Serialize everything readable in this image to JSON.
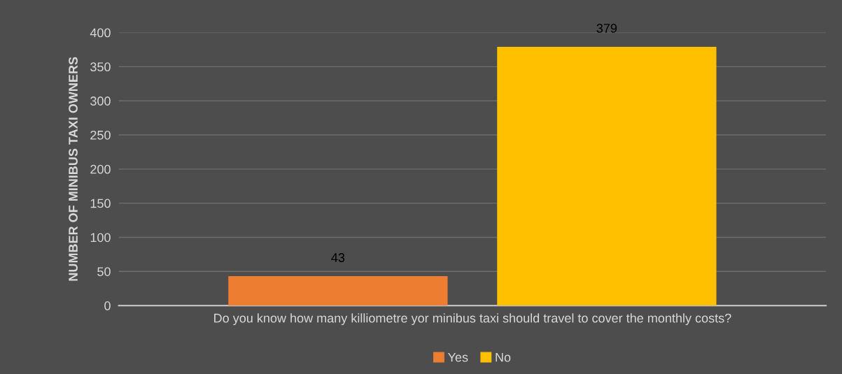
{
  "chart_data": {
    "type": "bar",
    "categories": [
      "Do you know how many killiometre yor minibus taxi should travel to cover the monthly costs?"
    ],
    "series": [
      {
        "name": "Yes",
        "color": "#ed7d31",
        "values": [
          43
        ]
      },
      {
        "name": "No",
        "color": "#ffc000",
        "values": [
          379
        ]
      }
    ],
    "ylabel": "NUMBER OF MINIBUS TAXI OWNERS",
    "ylim": [
      0,
      400
    ],
    "yticks": [
      0,
      50,
      100,
      150,
      200,
      250,
      300,
      350,
      400
    ],
    "grid": "y",
    "legend": "bottom",
    "data_labels": true
  }
}
